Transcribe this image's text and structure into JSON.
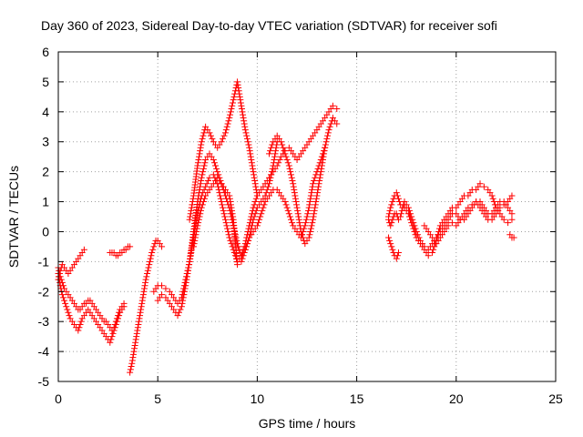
{
  "chart_data": {
    "type": "scatter",
    "title": "Day 360 of 2023, Sidereal Day-to-day VTEC variation (SDTVAR) for receiver sofi",
    "xlabel": "GPS time / hours",
    "ylabel": "SDTVAR / TECUs",
    "xlim": [
      0,
      25
    ],
    "ylim": [
      -5,
      6
    ],
    "xticks": [
      0,
      5,
      10,
      15,
      20,
      25
    ],
    "yticks": [
      -5,
      -4,
      -3,
      -2,
      -1,
      0,
      1,
      2,
      3,
      4,
      5,
      6
    ],
    "grid": true,
    "legend": "none",
    "marker": "plus",
    "color": "#ff0000",
    "series": [
      {
        "x": [
          0.0,
          0.1,
          0.2,
          0.3,
          0.4,
          0.5,
          0.6,
          0.7,
          0.8,
          0.9,
          1.0,
          1.1,
          1.2,
          1.3,
          1.4,
          1.5,
          1.6,
          1.7,
          1.8,
          1.9,
          2.0,
          2.1,
          2.2,
          2.3,
          2.4,
          2.5,
          2.6,
          2.7,
          2.8,
          2.9,
          3.0,
          3.1,
          3.2,
          3.3
        ],
        "y": [
          -1.4,
          -1.8,
          -2.1,
          -2.3,
          -2.5,
          -2.7,
          -2.9,
          -3.0,
          -3.1,
          -3.2,
          -3.3,
          -3.1,
          -2.9,
          -2.8,
          -2.7,
          -2.6,
          -2.7,
          -2.8,
          -2.9,
          -3.0,
          -3.1,
          -3.2,
          -3.3,
          -3.4,
          -3.5,
          -3.6,
          -3.7,
          -3.5,
          -3.3,
          -3.1,
          -2.9,
          -2.7,
          -2.6,
          -2.5
        ]
      },
      {
        "x": [
          0.0,
          0.1,
          0.2,
          0.3,
          0.4,
          0.5,
          0.6,
          0.7,
          0.8,
          0.9,
          1.0,
          1.1,
          1.2,
          1.3,
          1.4,
          1.5,
          1.6,
          1.7,
          1.8,
          1.9,
          2.0,
          2.1,
          2.2,
          2.3,
          2.4,
          2.5,
          2.6,
          2.7,
          2.8,
          2.9,
          3.0,
          3.1,
          3.2,
          3.3
        ],
        "y": [
          -1.2,
          -1.5,
          -1.7,
          -1.9,
          -2.0,
          -2.1,
          -2.2,
          -2.3,
          -2.4,
          -2.5,
          -2.6,
          -2.6,
          -2.5,
          -2.4,
          -2.4,
          -2.3,
          -2.3,
          -2.4,
          -2.5,
          -2.6,
          -2.7,
          -2.8,
          -2.9,
          -3.0,
          -3.0,
          -3.1,
          -3.2,
          -3.3,
          -3.2,
          -3.0,
          -2.8,
          -2.6,
          -2.5,
          -2.4
        ]
      },
      {
        "x": [
          0.0,
          0.1,
          0.2,
          0.3,
          0.4,
          0.5,
          0.6,
          0.7,
          0.8,
          0.9,
          1.0,
          1.1,
          1.2,
          1.3
        ],
        "y": [
          -1.6,
          -1.3,
          -1.1,
          -1.2,
          -1.3,
          -1.4,
          -1.3,
          -1.2,
          -1.1,
          -1.0,
          -0.9,
          -0.8,
          -0.7,
          -0.6
        ]
      },
      {
        "x": [
          2.6,
          2.7,
          2.8,
          2.9,
          3.0,
          3.1,
          3.2,
          3.3,
          3.4,
          3.5,
          3.6
        ],
        "y": [
          -0.7,
          -0.7,
          -0.7,
          -0.8,
          -0.8,
          -0.7,
          -0.7,
          -0.6,
          -0.6,
          -0.5,
          -0.5
        ]
      },
      {
        "x": [
          3.6,
          3.7,
          3.8,
          3.9,
          4.0,
          4.1,
          4.2,
          4.3,
          4.4,
          4.5,
          4.6,
          4.7,
          4.8,
          4.9,
          5.0,
          5.1,
          5.2
        ],
        "y": [
          -4.7,
          -4.4,
          -4.0,
          -3.6,
          -3.2,
          -2.8,
          -2.4,
          -2.0,
          -1.6,
          -1.3,
          -1.0,
          -0.7,
          -0.5,
          -0.3,
          -0.3,
          -0.4,
          -0.5
        ]
      },
      {
        "x": [
          4.8,
          5.0,
          5.2,
          5.4,
          5.6,
          5.8,
          6.0,
          6.2,
          6.4,
          6.6,
          6.8,
          7.0,
          7.2,
          7.4,
          7.6,
          7.8,
          8.0,
          8.2,
          8.4,
          8.6,
          8.8,
          9.0,
          9.2,
          9.4,
          9.6,
          9.8,
          10.0,
          10.2,
          10.4,
          10.6,
          10.8,
          11.0,
          11.2,
          11.4,
          11.6,
          11.8,
          12.0,
          12.2,
          12.4,
          12.6,
          12.8,
          13.0,
          13.2,
          13.4,
          13.6,
          13.8,
          14.0
        ],
        "y": [
          -2.0,
          -1.8,
          -1.8,
          -1.9,
          -2.0,
          -2.2,
          -2.4,
          -2.2,
          -1.6,
          -1.0,
          -0.2,
          0.6,
          1.2,
          1.5,
          1.8,
          1.9,
          1.6,
          1.0,
          0.4,
          -0.2,
          -0.6,
          -1.0,
          -0.8,
          -0.4,
          0.2,
          0.8,
          1.2,
          1.4,
          1.6,
          1.8,
          2.0,
          2.2,
          2.5,
          2.7,
          2.8,
          2.6,
          2.4,
          2.6,
          2.8,
          3.0,
          3.2,
          3.4,
          3.6,
          3.8,
          4.0,
          4.2,
          4.1
        ]
      },
      {
        "x": [
          5.0,
          5.2,
          5.4,
          5.6,
          5.8,
          6.0,
          6.2,
          6.4,
          6.6,
          6.8,
          7.0,
          7.2,
          7.4,
          7.6,
          7.8,
          8.0,
          8.2,
          8.4,
          8.6,
          8.8,
          9.0,
          9.2,
          9.4,
          9.6,
          9.8,
          10.0,
          10.2,
          10.4,
          10.6,
          10.8,
          11.0,
          11.2,
          11.4,
          11.6,
          11.8,
          12.0,
          12.2,
          12.4,
          12.6,
          12.8,
          13.0,
          13.2,
          13.4
        ],
        "y": [
          -2.3,
          -2.1,
          -2.2,
          -2.4,
          -2.6,
          -2.8,
          -2.5,
          -1.8,
          -1.0,
          0.0,
          1.0,
          1.8,
          2.4,
          2.6,
          2.4,
          2.0,
          1.6,
          1.4,
          1.2,
          0.4,
          -1.1,
          -1.0,
          -0.6,
          -0.2,
          0.0,
          0.2,
          0.6,
          1.0,
          1.2,
          1.4,
          1.4,
          1.2,
          1.0,
          0.6,
          0.2,
          0.0,
          -0.2,
          0.2,
          0.8,
          1.6,
          2.0,
          2.4,
          2.8
        ]
      },
      {
        "x": [
          6.6,
          6.8,
          7.0,
          7.2,
          7.4,
          7.6,
          7.8,
          8.0,
          8.2,
          8.4,
          8.6,
          8.8,
          9.0,
          9.2,
          9.4,
          9.6,
          9.8,
          10.0
        ],
        "y": [
          0.4,
          1.2,
          2.2,
          3.0,
          3.5,
          3.3,
          3.0,
          2.8,
          3.0,
          3.3,
          3.8,
          4.4,
          5.0,
          4.2,
          3.4,
          2.8,
          2.0,
          1.2
        ]
      },
      {
        "x": [
          6.8,
          7.0,
          7.2,
          7.4,
          7.6,
          7.8,
          8.0,
          8.2,
          8.4,
          8.6,
          8.8,
          9.0,
          9.2,
          9.4,
          9.6,
          9.8,
          10.0,
          10.2,
          10.4,
          10.6,
          10.8,
          11.0
        ],
        "y": [
          -0.5,
          0.2,
          0.8,
          1.2,
          1.4,
          1.6,
          1.8,
          1.6,
          1.2,
          0.8,
          0.2,
          -0.4,
          -0.8,
          -0.6,
          -0.2,
          0.4,
          0.8,
          1.0,
          1.2,
          1.6,
          2.2,
          3.0
        ]
      },
      {
        "x": [
          10.6,
          10.8,
          11.0,
          11.2,
          11.4,
          11.6,
          11.8,
          12.0,
          12.2,
          12.4,
          12.6,
          12.8,
          13.0,
          13.2,
          13.4,
          13.6,
          13.8,
          14.0
        ],
        "y": [
          2.6,
          3.0,
          3.2,
          3.0,
          2.6,
          2.2,
          1.6,
          0.8,
          0.0,
          -0.4,
          -0.2,
          0.4,
          1.2,
          2.0,
          2.8,
          3.4,
          3.8,
          3.6
        ]
      },
      {
        "x": [
          16.6,
          16.7,
          16.8,
          16.9,
          17.0,
          17.1,
          17.2
        ],
        "y": [
          0.5,
          0.8,
          1.0,
          1.2,
          1.3,
          1.1,
          0.9
        ]
      },
      {
        "x": [
          16.6,
          16.7,
          16.8,
          16.9,
          17.0,
          17.1,
          17.2,
          17.3,
          17.4,
          17.6,
          17.8,
          18.0,
          18.2,
          18.4,
          18.6,
          18.8,
          19.0,
          19.2,
          19.4,
          19.6,
          19.8,
          20.0,
          20.2,
          20.4,
          20.6,
          20.8,
          21.0,
          21.2,
          21.4,
          21.6,
          21.8,
          22.0,
          22.2,
          22.4,
          22.6,
          22.8
        ],
        "y": [
          0.4,
          0.2,
          0.4,
          0.6,
          0.6,
          0.4,
          0.5,
          0.8,
          1.0,
          0.8,
          0.4,
          0.0,
          -0.3,
          -0.5,
          -0.6,
          -0.4,
          -0.2,
          0.0,
          0.2,
          0.4,
          0.6,
          0.6,
          0.4,
          0.4,
          0.6,
          0.8,
          1.0,
          1.0,
          0.8,
          0.6,
          0.6,
          0.8,
          1.0,
          1.0,
          0.8,
          0.6
        ]
      },
      {
        "x": [
          16.6,
          16.7,
          16.8,
          16.9,
          17.0,
          17.1
        ],
        "y": [
          -0.2,
          -0.4,
          -0.6,
          -0.8,
          -0.9,
          -0.7
        ]
      },
      {
        "x": [
          17.4,
          17.6,
          17.8,
          18.0,
          18.2,
          18.4,
          18.6,
          18.8,
          19.0,
          19.2,
          19.4,
          19.6,
          19.8,
          20.0,
          20.2,
          20.4,
          20.6,
          20.8,
          21.0,
          21.2,
          21.4,
          21.6,
          21.8,
          22.0,
          22.2,
          22.4,
          22.6,
          22.8
        ],
        "y": [
          0.8,
          0.6,
          0.2,
          -0.2,
          -0.4,
          -0.6,
          -0.8,
          -0.7,
          -0.3,
          0.2,
          0.4,
          0.6,
          0.8,
          0.8,
          1.0,
          1.2,
          1.2,
          1.4,
          1.4,
          1.6,
          1.5,
          1.4,
          1.2,
          0.8,
          0.6,
          0.4,
          0.3,
          0.4
        ]
      },
      {
        "x": [
          18.4,
          18.6,
          18.8,
          19.0,
          19.2,
          19.4,
          19.6,
          19.8,
          20.0,
          20.2,
          20.4,
          20.6,
          20.8,
          21.0,
          21.2,
          21.4,
          21.6,
          21.8,
          22.0,
          22.2,
          22.4,
          22.6,
          22.8
        ],
        "y": [
          0.2,
          0.0,
          -0.2,
          -0.4,
          -0.2,
          0.0,
          0.2,
          0.3,
          0.2,
          0.4,
          0.6,
          0.8,
          0.9,
          1.0,
          0.8,
          0.6,
          0.4,
          0.4,
          0.6,
          0.8,
          0.9,
          1.0,
          1.2
        ]
      },
      {
        "x": [
          22.7,
          22.8,
          22.9
        ],
        "y": [
          -0.1,
          -0.2,
          -0.2
        ]
      }
    ]
  }
}
